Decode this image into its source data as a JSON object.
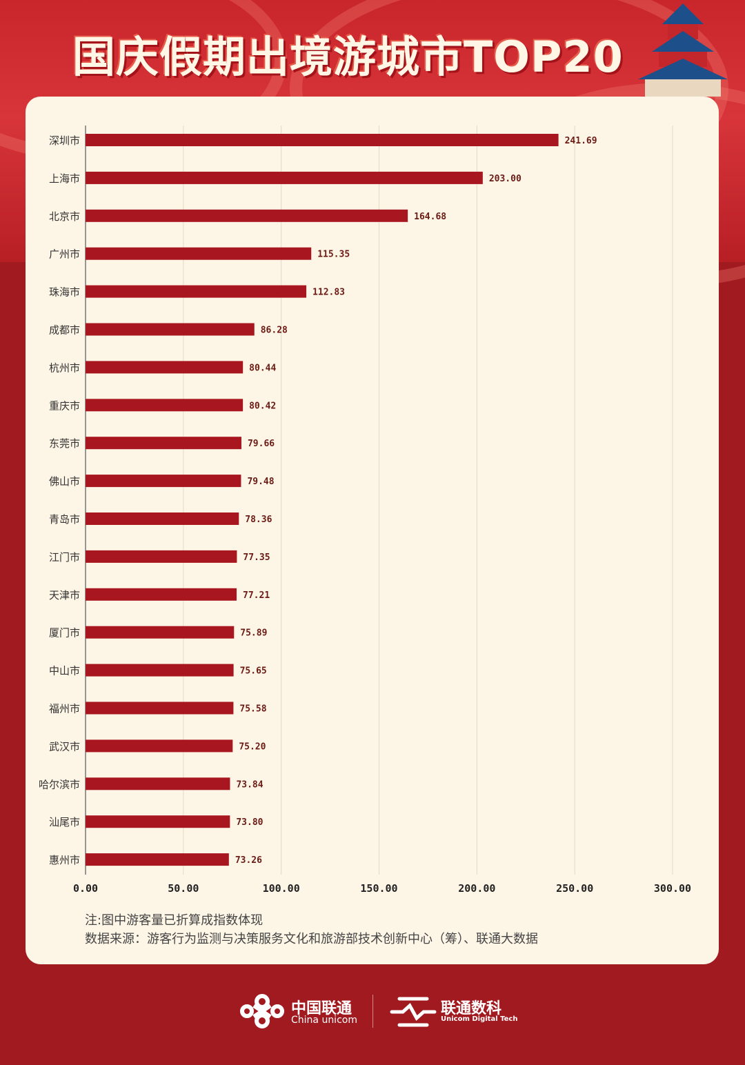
{
  "title": "国庆假期出境游城市TOP20",
  "chart_data": {
    "type": "bar",
    "orientation": "horizontal",
    "title": "国庆假期出境游城市TOP20",
    "categories": [
      "深圳市",
      "上海市",
      "北京市",
      "广州市",
      "珠海市",
      "成都市",
      "杭州市",
      "重庆市",
      "东莞市",
      "佛山市",
      "青岛市",
      "江门市",
      "天津市",
      "厦门市",
      "中山市",
      "福州市",
      "武汉市",
      "哈尔滨市",
      "汕尾市",
      "惠州市"
    ],
    "values": [
      241.69,
      203.0,
      164.68,
      115.35,
      112.83,
      86.28,
      80.44,
      80.42,
      79.66,
      79.48,
      78.36,
      77.35,
      77.21,
      75.89,
      75.65,
      75.58,
      75.2,
      73.84,
      73.8,
      73.26
    ],
    "value_labels": [
      "241.69",
      "203.00",
      "164.68",
      "115.35",
      "112.83",
      "86.28",
      "80.44",
      "80.42",
      "79.66",
      "79.48",
      "78.36",
      "77.35",
      "77.21",
      "75.89",
      "75.65",
      "75.58",
      "75.20",
      "73.84",
      "73.80",
      "73.26"
    ],
    "xlim": [
      0,
      300
    ],
    "xticks": [
      0,
      50,
      100,
      150,
      200,
      250,
      300
    ],
    "xtick_labels": [
      "0.00",
      "50.00",
      "100.00",
      "150.00",
      "200.00",
      "250.00",
      "300.00"
    ],
    "grid": "vertical",
    "bar_color": "#a8171f",
    "xlabel": "",
    "ylabel": ""
  },
  "notes": [
    "注:图中游客量已折算成指数体现",
    "数据来源：游客行为监测与决策服务文化和旅游部技术创新中心（筹）、联通大数据"
  ],
  "footer": {
    "logo1_cn": "中国联通",
    "logo1_en": "China unicom",
    "logo2_cn": "联通数科",
    "logo2_en": "Unicom Digital Tech"
  },
  "colors": {
    "background": "#a11a20",
    "card": "#fdf5e6",
    "bar": "#a8171f",
    "label": "#6b1a14"
  }
}
